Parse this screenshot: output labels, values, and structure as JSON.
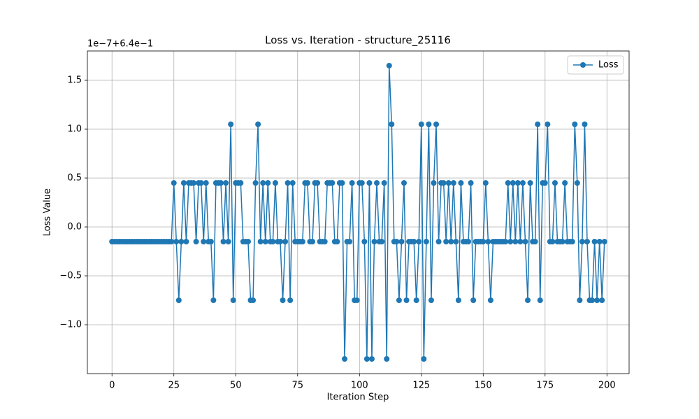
{
  "chart_data": {
    "type": "line",
    "title": "Loss vs. Iteration - structure_25116",
    "x_label": "Iteration Step",
    "y_label": "Loss Value",
    "y_offset_label": "1e−7+6.4e−1",
    "legend": "upper right",
    "grid": true,
    "xlim": [
      -9.95,
      208.95
    ],
    "ylim": [
      -1.5,
      1.8
    ],
    "xticks": [
      0,
      25,
      50,
      75,
      100,
      125,
      150,
      175,
      200
    ],
    "yticks": [
      {
        "value": -1.0,
        "label": "−1.0"
      },
      {
        "value": -0.5,
        "label": "−0.5"
      },
      {
        "value": 0.0,
        "label": "0.0"
      },
      {
        "value": 0.5,
        "label": "0.5"
      },
      {
        "value": 1.0,
        "label": "1.0"
      },
      {
        "value": 1.5,
        "label": "1.5"
      }
    ],
    "x": [
      0,
      1,
      2,
      3,
      4,
      5,
      6,
      7,
      8,
      9,
      10,
      11,
      12,
      13,
      14,
      15,
      16,
      17,
      18,
      19,
      20,
      21,
      22,
      23,
      24,
      25,
      26,
      27,
      28,
      29,
      30,
      31,
      32,
      33,
      34,
      35,
      36,
      37,
      38,
      39,
      40,
      41,
      42,
      43,
      44,
      45,
      46,
      47,
      48,
      49,
      50,
      51,
      52,
      53,
      54,
      55,
      56,
      57,
      58,
      59,
      60,
      61,
      62,
      63,
      64,
      65,
      66,
      67,
      68,
      69,
      70,
      71,
      72,
      73,
      74,
      75,
      76,
      77,
      78,
      79,
      80,
      81,
      82,
      83,
      84,
      85,
      86,
      87,
      88,
      89,
      90,
      91,
      92,
      93,
      94,
      95,
      96,
      97,
      98,
      99,
      100,
      101,
      102,
      103,
      104,
      105,
      106,
      107,
      108,
      109,
      110,
      111,
      112,
      113,
      114,
      115,
      116,
      117,
      118,
      119,
      120,
      121,
      122,
      123,
      124,
      125,
      126,
      127,
      128,
      129,
      130,
      131,
      132,
      133,
      134,
      135,
      136,
      137,
      138,
      139,
      140,
      141,
      142,
      143,
      144,
      145,
      146,
      147,
      148,
      149,
      150,
      151,
      152,
      153,
      154,
      155,
      156,
      157,
      158,
      159,
      160,
      161,
      162,
      163,
      164,
      165,
      166,
      167,
      168,
      169,
      170,
      171,
      172,
      173,
      174,
      175,
      176,
      177,
      178,
      179,
      180,
      181,
      182,
      183,
      184,
      185,
      186,
      187,
      188,
      189,
      190,
      191,
      192,
      193,
      194,
      195,
      196,
      197,
      198,
      199
    ],
    "series": [
      {
        "name": "Loss",
        "color": "#1f77b4",
        "values": [
          -0.15,
          -0.15,
          -0.15,
          -0.15,
          -0.15,
          -0.15,
          -0.15,
          -0.15,
          -0.15,
          -0.15,
          -0.15,
          -0.15,
          -0.15,
          -0.15,
          -0.15,
          -0.15,
          -0.15,
          -0.15,
          -0.15,
          -0.15,
          -0.15,
          -0.15,
          -0.15,
          -0.15,
          -0.15,
          0.45,
          -0.15,
          -0.75,
          -0.15,
          0.45,
          -0.15,
          0.45,
          0.45,
          0.45,
          -0.15,
          0.45,
          0.45,
          -0.15,
          0.45,
          -0.15,
          -0.15,
          -0.75,
          0.45,
          0.45,
          0.45,
          -0.15,
          0.45,
          -0.15,
          1.05,
          -0.75,
          0.45,
          0.45,
          0.45,
          -0.15,
          -0.15,
          -0.15,
          -0.75,
          -0.75,
          0.45,
          1.05,
          -0.15,
          0.45,
          -0.15,
          0.45,
          -0.15,
          -0.15,
          0.45,
          -0.15,
          -0.15,
          -0.75,
          -0.15,
          0.45,
          -0.75,
          0.45,
          -0.15,
          -0.15,
          -0.15,
          -0.15,
          0.45,
          0.45,
          -0.15,
          -0.15,
          0.45,
          0.45,
          -0.15,
          -0.15,
          -0.15,
          0.45,
          0.45,
          0.45,
          -0.15,
          -0.15,
          0.45,
          0.45,
          -1.35,
          -0.15,
          -0.15,
          0.45,
          -0.75,
          -0.75,
          0.45,
          0.45,
          -0.15,
          -1.35,
          0.45,
          -1.35,
          -0.15,
          0.45,
          -0.15,
          -0.15,
          0.45,
          -1.35,
          1.65,
          1.05,
          -0.15,
          -0.15,
          -0.75,
          -0.15,
          0.45,
          -0.75,
          -0.15,
          -0.15,
          -0.15,
          -0.75,
          -0.15,
          1.05,
          -1.35,
          -0.15,
          1.05,
          -0.75,
          0.45,
          1.05,
          -0.15,
          0.45,
          0.45,
          -0.15,
          0.45,
          -0.15,
          0.45,
          -0.15,
          -0.75,
          0.45,
          -0.15,
          -0.15,
          -0.15,
          0.45,
          -0.75,
          -0.15,
          -0.15,
          -0.15,
          -0.15,
          0.45,
          -0.15,
          -0.75,
          -0.15,
          -0.15,
          -0.15,
          -0.15,
          -0.15,
          -0.15,
          0.45,
          -0.15,
          0.45,
          -0.15,
          0.45,
          -0.15,
          0.45,
          -0.15,
          -0.75,
          0.45,
          -0.15,
          -0.15,
          1.05,
          -0.75,
          0.45,
          0.45,
          1.05,
          -0.15,
          -0.15,
          0.45,
          -0.15,
          -0.15,
          -0.15,
          0.45,
          -0.15,
          -0.15,
          -0.15,
          1.05,
          0.45,
          -0.75,
          -0.15,
          1.05,
          -0.15,
          -0.75,
          -0.75,
          -0.15,
          -0.75,
          -0.15,
          -0.75,
          -0.15
        ]
      }
    ]
  }
}
